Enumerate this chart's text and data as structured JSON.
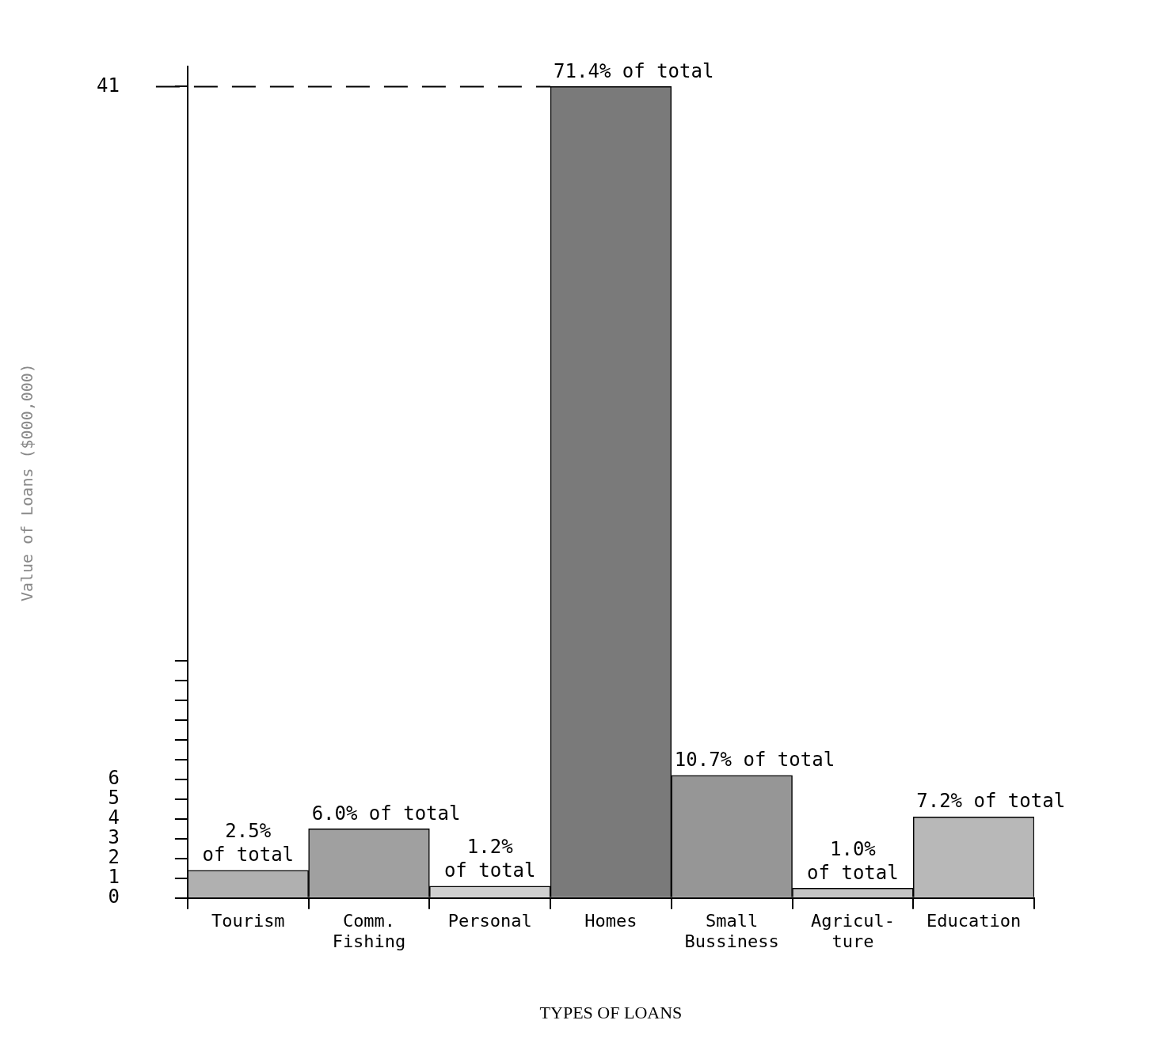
{
  "chart_data": {
    "type": "bar",
    "xlabel": "TYPES OF LOANS",
    "ylabel": "Value of Loans ($000,000)",
    "categories": [
      "Tourism",
      "Comm.\nFishing",
      "Personal",
      "Homes",
      "Small\nBussiness",
      "Agricul-\nture",
      "Education"
    ],
    "values": [
      1.4,
      3.5,
      0.6,
      41,
      6.2,
      0.5,
      4.1
    ],
    "annotations": [
      {
        "text": "2.5%\nof total",
        "x": "Tourism",
        "y": 1.4
      },
      {
        "text": "6.0% of total",
        "x": "Comm.\nFishing",
        "y": 3.5
      },
      {
        "text": "1.2%\nof total",
        "x": "Personal",
        "y": 0.6
      },
      {
        "text": "71.4% of total",
        "x": "Homes",
        "y": 41
      },
      {
        "text": "10.7% of total",
        "x": "Small\nBussiness",
        "y": 6.2
      },
      {
        "text": "1.0%\nof total",
        "x": "Agricul-\nture",
        "y": 0.5
      },
      {
        "text": "7.2% of total",
        "x": "Education",
        "y": 4.1
      }
    ],
    "colors": [
      "#b0b0b0",
      "#a0a0a0",
      "#d0d0d0",
      "#7a7a7a",
      "#969696",
      "#c4c4c4",
      "#b8b8b8"
    ],
    "ylim": [
      0,
      42
    ],
    "yticks": [
      0,
      1,
      2,
      3,
      4,
      5,
      6,
      {
        "value": 7,
        "label": null
      },
      {
        "value": 8,
        "label": null
      },
      {
        "value": 9,
        "label": null
      },
      {
        "value": 10,
        "label": null
      },
      {
        "value": 11,
        "label": null
      },
      {
        "value": 12,
        "label": null
      },
      41
    ],
    "ref_lines": [
      {
        "axis": "y",
        "value": 41,
        "line_style": "dashed",
        "color": "#000000"
      }
    ],
    "grid": false,
    "legend": false
  }
}
